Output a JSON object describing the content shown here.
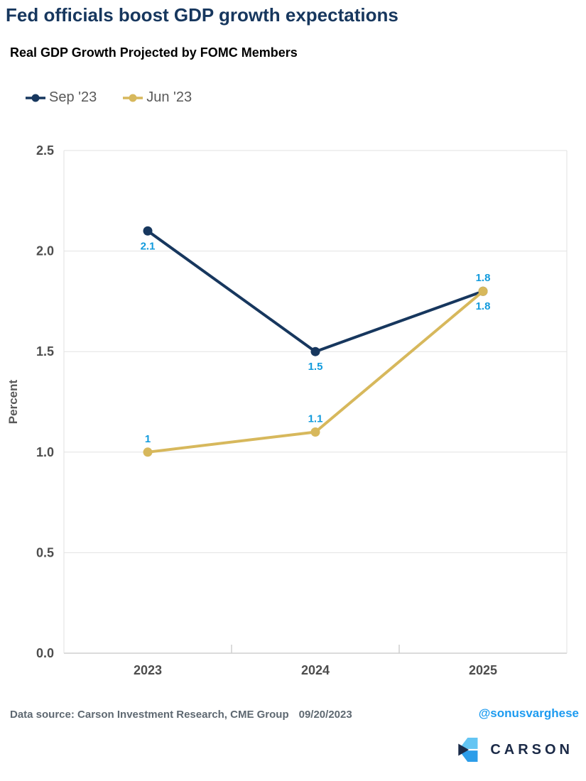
{
  "header": {
    "title": "Fed officials boost GDP growth expectations",
    "subtitle": "Real GDP Growth Projected by FOMC Members"
  },
  "chart_data": {
    "type": "line",
    "categories": [
      "2023",
      "2024",
      "2025"
    ],
    "series": [
      {
        "name": "Sep '23",
        "color": "#17375e",
        "values": [
          2.1,
          1.5,
          1.8
        ],
        "labels": [
          "2.1",
          "1.5",
          "1.8"
        ],
        "label_side": "below"
      },
      {
        "name": "Jun '23",
        "color": "#d7b85c",
        "values": [
          1,
          1.1,
          1.8
        ],
        "labels": [
          "1",
          "1.1",
          "1.8"
        ],
        "label_side": "above"
      }
    ],
    "xlabel": "",
    "ylabel": "Percent",
    "ylim": [
      0,
      2.5
    ],
    "yticks": [
      0,
      0.5,
      1,
      1.5,
      2,
      2.5
    ],
    "ytick_labels": [
      "0.0",
      "0.5",
      "1.0",
      "1.5",
      "2.0",
      "2.5"
    ],
    "grid": true,
    "legend_position": "top-left",
    "data_label_color": "#129bdd",
    "axis_text_color": "#4d4d4d",
    "ylabel_color": "#595959",
    "grid_color": "#e2e2e2",
    "axis_line_color": "#cfcfcf"
  },
  "footer": {
    "source": "Data source: Carson Investment Research, CME Group",
    "date": "09/20/2023",
    "handle": "@sonusvarghese"
  },
  "logo": {
    "text": "CARSON",
    "colors": {
      "light": "#64c5f3",
      "mid": "#2d9de9",
      "dark": "#1b2b49",
      "text": "#1b2a47"
    }
  }
}
